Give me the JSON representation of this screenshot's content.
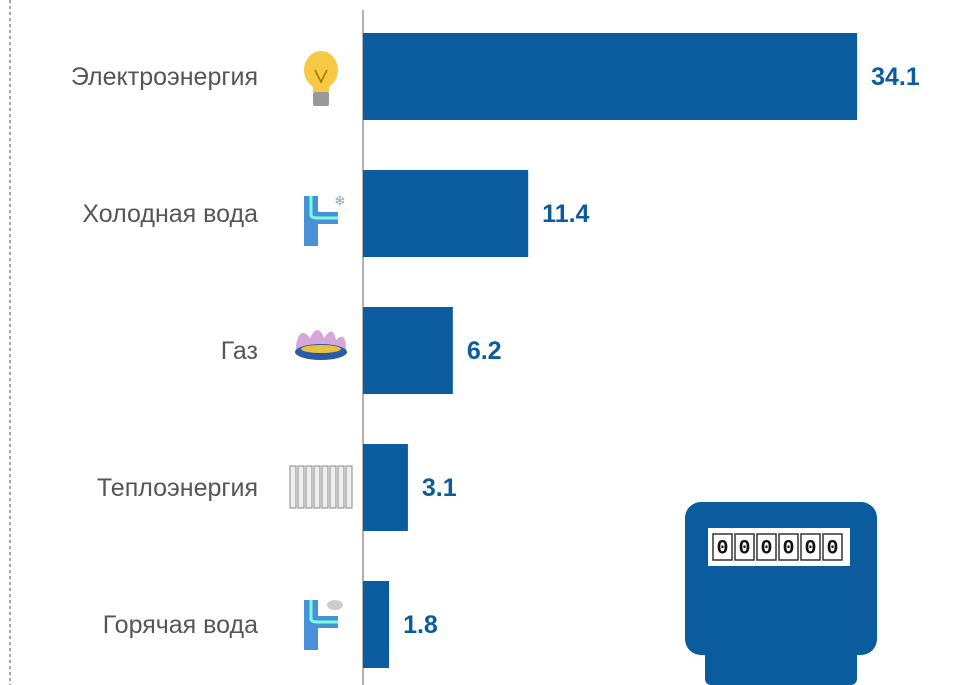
{
  "chart_data": {
    "type": "barh",
    "categories": [
      "Электроэнергия",
      "Холодная вода",
      "Газ",
      "Теплоэнергия",
      "Горячая вода"
    ],
    "values": [
      34.1,
      11.4,
      6.2,
      3.1,
      1.8
    ],
    "color": "#0b5c9e"
  },
  "meter_digits": [
    "0",
    "0",
    "0",
    "0",
    "0",
    "0"
  ]
}
